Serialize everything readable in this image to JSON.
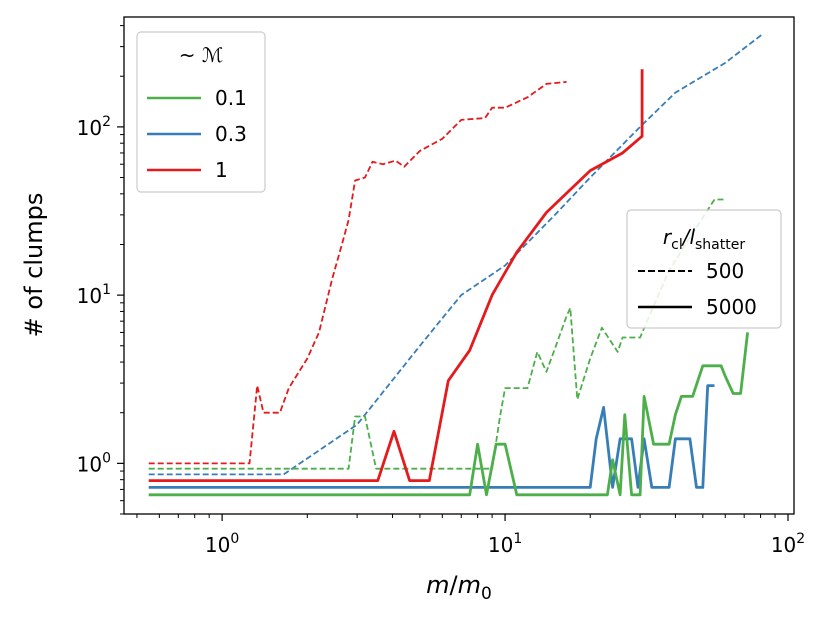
{
  "chart_data": {
    "type": "line",
    "xlabel_italic": "m",
    "xlabel_sep": "/",
    "xlabel_italic2": "m",
    "xlabel_sub": "0",
    "ylabel": "# of clumps",
    "xscale": "log",
    "yscale": "log",
    "xlim": [
      0.45,
      105
    ],
    "ylim": [
      0.5,
      450
    ],
    "xticks": [
      {
        "value": 1,
        "base": "10",
        "exp": "0"
      },
      {
        "value": 10,
        "base": "10",
        "exp": "1"
      },
      {
        "value": 100,
        "base": "10",
        "exp": "2"
      }
    ],
    "yticks": [
      {
        "value": 1,
        "base": "10",
        "exp": "0"
      },
      {
        "value": 10,
        "base": "10",
        "exp": "1"
      },
      {
        "value": 100,
        "base": "10",
        "exp": "2"
      }
    ],
    "grid": false,
    "legends": [
      {
        "position": "top-left",
        "title": "~ ℳ",
        "entries": [
          {
            "label": "0.1",
            "color": "#4daf4a",
            "style": "solid"
          },
          {
            "label": "0.3",
            "color": "#377eb8",
            "style": "solid"
          },
          {
            "label": "1",
            "color": "#e41a1c",
            "style": "solid"
          }
        ]
      },
      {
        "position": "center-right",
        "title_r": "r",
        "title_r_sub": "cl",
        "title_l": "/l",
        "title_l_sub": "shatter",
        "entries": [
          {
            "label": "500",
            "color": "#000000",
            "style": "dashed"
          },
          {
            "label": "5000",
            "color": "#000000",
            "style": "solid"
          }
        ]
      }
    ],
    "series": [
      {
        "color": "#e41a1c",
        "style": "dashed",
        "group": "1 / 500",
        "points": [
          [
            0.55,
            1.0
          ],
          [
            1.25,
            1.0
          ],
          [
            1.33,
            2.9
          ],
          [
            1.4,
            2.0
          ],
          [
            1.6,
            2.0
          ],
          [
            1.72,
            2.8
          ],
          [
            2.0,
            4.2
          ],
          [
            2.2,
            6.0
          ],
          [
            2.45,
            12.5
          ],
          [
            2.65,
            20.0
          ],
          [
            2.8,
            28.0
          ],
          [
            2.95,
            48.0
          ],
          [
            3.2,
            50.0
          ],
          [
            3.4,
            62.0
          ],
          [
            3.7,
            60.0
          ],
          [
            4.1,
            63.0
          ],
          [
            4.4,
            58.0
          ],
          [
            5.0,
            72.0
          ],
          [
            6.0,
            85.0
          ],
          [
            7.0,
            110.0
          ],
          [
            8.5,
            113.0
          ],
          [
            9.0,
            130.0
          ],
          [
            10.0,
            130.0
          ],
          [
            12.0,
            150.0
          ],
          [
            14.0,
            180.0
          ],
          [
            16.5,
            185.0
          ]
        ]
      },
      {
        "color": "#377eb8",
        "style": "dashed",
        "group": "0.3 / 500",
        "points": [
          [
            0.55,
            0.86
          ],
          [
            1.65,
            0.86
          ],
          [
            3.0,
            1.7
          ],
          [
            5.0,
            5.0
          ],
          [
            7.0,
            10.0
          ],
          [
            10.0,
            15.0
          ],
          [
            15.0,
            30.0
          ],
          [
            20.0,
            50.0
          ],
          [
            30.0,
            100.0
          ],
          [
            40.0,
            160.0
          ],
          [
            60.0,
            240.0
          ],
          [
            82.0,
            360.0
          ]
        ]
      },
      {
        "color": "#4daf4a",
        "style": "dashed",
        "group": "0.1 / 500",
        "points": [
          [
            0.55,
            0.93
          ],
          [
            2.8,
            0.93
          ],
          [
            2.95,
            1.9
          ],
          [
            3.2,
            1.9
          ],
          [
            3.5,
            0.93
          ],
          [
            9.0,
            0.93
          ],
          [
            9.6,
            1.9
          ],
          [
            10.0,
            2.8
          ],
          [
            12.0,
            2.8
          ],
          [
            13.0,
            4.6
          ],
          [
            14.0,
            3.5
          ],
          [
            15.0,
            4.8
          ],
          [
            16.5,
            7.5
          ],
          [
            17.0,
            8.4
          ],
          [
            18.0,
            2.4
          ],
          [
            20.0,
            4.2
          ],
          [
            22.0,
            6.4
          ],
          [
            25.0,
            4.6
          ],
          [
            26.0,
            5.6
          ],
          [
            30.0,
            5.6
          ],
          [
            38.0,
            14.0
          ],
          [
            45.0,
            22.0
          ],
          [
            55.0,
            37.0
          ],
          [
            60.0,
            37.0
          ]
        ]
      },
      {
        "color": "#e41a1c",
        "style": "solid",
        "group": "1 / 5000",
        "points": [
          [
            0.55,
            0.79
          ],
          [
            3.55,
            0.79
          ],
          [
            4.05,
            1.55
          ],
          [
            4.6,
            0.79
          ],
          [
            5.4,
            0.79
          ],
          [
            6.3,
            3.1
          ],
          [
            7.5,
            4.7
          ],
          [
            9.0,
            10.0
          ],
          [
            11.0,
            18.0
          ],
          [
            14.0,
            31.0
          ],
          [
            20.0,
            55.0
          ],
          [
            26.0,
            70.0
          ],
          [
            30.5,
            88.0
          ],
          [
            30.5,
            220.0
          ]
        ]
      },
      {
        "color": "#377eb8",
        "style": "solid",
        "group": "0.3 / 5000",
        "points": [
          [
            0.55,
            0.72
          ],
          [
            20.0,
            0.72
          ],
          [
            21.0,
            1.4
          ],
          [
            22.3,
            2.15
          ],
          [
            24.0,
            0.72
          ],
          [
            25.5,
            1.4
          ],
          [
            28.0,
            1.4
          ],
          [
            29.5,
            0.72
          ],
          [
            31.0,
            1.4
          ],
          [
            33.0,
            0.72
          ],
          [
            38.0,
            0.72
          ],
          [
            40.0,
            1.4
          ],
          [
            45.0,
            1.4
          ],
          [
            47.5,
            0.72
          ],
          [
            50.0,
            0.72
          ],
          [
            52.0,
            2.9
          ],
          [
            55.0,
            2.9
          ]
        ]
      },
      {
        "color": "#4daf4a",
        "style": "solid",
        "group": "0.1 / 5000",
        "points": [
          [
            0.55,
            0.65
          ],
          [
            7.5,
            0.65
          ],
          [
            8.0,
            1.3
          ],
          [
            8.6,
            0.65
          ],
          [
            9.3,
            1.3
          ],
          [
            10.0,
            1.3
          ],
          [
            11.0,
            0.65
          ],
          [
            21.0,
            0.65
          ],
          [
            23.0,
            0.65
          ],
          [
            24.0,
            1.05
          ],
          [
            25.5,
            0.65
          ],
          [
            26.5,
            1.95
          ],
          [
            28.0,
            0.65
          ],
          [
            30.0,
            0.65
          ],
          [
            31.0,
            2.5
          ],
          [
            33.5,
            1.3
          ],
          [
            38.0,
            1.3
          ],
          [
            40.0,
            1.95
          ],
          [
            42.0,
            2.5
          ],
          [
            46.0,
            2.5
          ],
          [
            50.0,
            3.8
          ],
          [
            58.0,
            3.8
          ],
          [
            60.0,
            3.3
          ],
          [
            64.0,
            2.6
          ],
          [
            68.0,
            2.6
          ],
          [
            72.0,
            6.0
          ]
        ]
      }
    ]
  }
}
